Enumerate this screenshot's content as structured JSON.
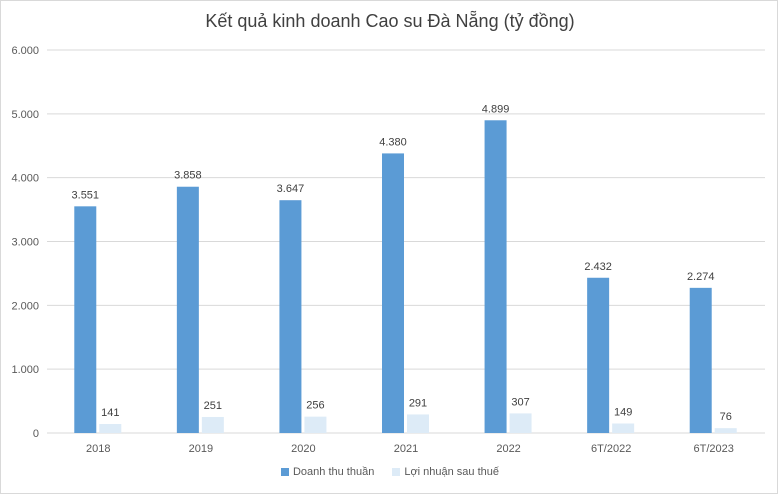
{
  "chart_data": {
    "type": "bar",
    "title": "Kết quả kinh doanh Cao su Đà Nẵng (tỷ đồng)",
    "categories": [
      "2018",
      "2019",
      "2020",
      "2021",
      "2022",
      "6T/2022",
      "6T/2023"
    ],
    "series": [
      {
        "name": "Doanh thu thuần",
        "color": "#5b9bd5",
        "values": [
          3551,
          3858,
          3647,
          4380,
          4899,
          2432,
          2274
        ],
        "labels": [
          "3.551",
          "3.858",
          "3.647",
          "4.380",
          "4.899",
          "2.432",
          "2.274"
        ]
      },
      {
        "name": "Lợi nhuận sau thuế",
        "color": "#ddebf7",
        "values": [
          141,
          251,
          256,
          291,
          307,
          149,
          76
        ],
        "labels": [
          "141",
          "251",
          "256",
          "291",
          "307",
          "149",
          "76"
        ]
      }
    ],
    "ylim": [
      0,
      6000
    ],
    "yticks": [
      0,
      1000,
      2000,
      3000,
      4000,
      5000,
      6000
    ],
    "ytick_labels": [
      "0",
      "1.000",
      "2.000",
      "3.000",
      "4.000",
      "5.000",
      "6.000"
    ],
    "grid": true,
    "legend_position": "bottom"
  }
}
